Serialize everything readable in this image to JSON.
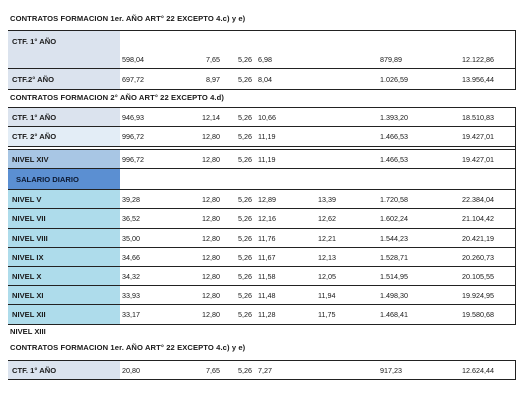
{
  "sections": [
    {
      "title": "CONTRATOS  FORMACION 1er. AÑO ART° 22 EXCEPTO 4.c) y e)"
    },
    {
      "title": "CONTRATOS  FORMACION 2° AÑO ART° 22 EXCEPTO 4.d)"
    },
    {
      "title": "CONTRATOS  FORMACION 1er. AÑO ART° 22 EXCEPTO 4.c) y  e)"
    }
  ],
  "block1": {
    "rows": [
      {
        "label": "CTF. 1° AÑO",
        "c1": "",
        "c2": "",
        "c3": "",
        "c4": "",
        "c5": "",
        "c6": "",
        "c7": ""
      },
      {
        "label": "",
        "c1": "598,04",
        "c2": "7,65",
        "c3": "5,26",
        "c4": "6,98",
        "c5": "",
        "c6": "879,89",
        "c7": "12.122,86"
      },
      {
        "label": "CTF.2° AÑO",
        "c1": "697,72",
        "c2": "8,97",
        "c3": "5,26",
        "c4": "8,04",
        "c5": "",
        "c6": "1.026,59",
        "c7": "13.956,44"
      }
    ]
  },
  "block2": {
    "rows": [
      {
        "label": "CTF. 1° AÑO",
        "c1": "946,93",
        "c2": "12,14",
        "c3": "5,26",
        "c4": "10,66",
        "c5": "",
        "c6": "1.393,20",
        "c7": "18.510,83"
      },
      {
        "label": "CTF. 2° AÑO",
        "c1": "996,72",
        "c2": "12,80",
        "c3": "5,26",
        "c4": "11,19",
        "c5": "",
        "c6": "1.466,53",
        "c7": "19.427,01"
      },
      {
        "label": "NIVEL XIV",
        "c1": "996,72",
        "c2": "12,80",
        "c3": "5,26",
        "c4": "11,19",
        "c5": "",
        "c6": "1.466,53",
        "c7": "19.427,01"
      },
      {
        "label": "SALARIO DIARIO",
        "c1": "",
        "c2": "",
        "c3": "",
        "c4": "",
        "c5": "",
        "c6": "",
        "c7": ""
      },
      {
        "label": "NIVEL  V",
        "c1": "39,28",
        "c2": "12,80",
        "c3": "5,26",
        "c4": "12,89",
        "c5": "13,39",
        "c6": "1.720,58",
        "c7": "22.384,04"
      },
      {
        "label": "NIVEL  VII",
        "c1": "36,52",
        "c2": "12,80",
        "c3": "5,26",
        "c4": "12,16",
        "c5": "12,62",
        "c6": "1.602,24",
        "c7": "21.104,42"
      },
      {
        "label": "NIVEL  VIII",
        "c1": "35,00",
        "c2": "12,80",
        "c3": "5,26",
        "c4": "11,76",
        "c5": "12,21",
        "c6": "1.544,23",
        "c7": "20.421,19"
      },
      {
        "label": "NIVEL  IX",
        "c1": "34,66",
        "c2": "12,80",
        "c3": "5,26",
        "c4": "11,67",
        "c5": "12,13",
        "c6": "1.528,71",
        "c7": "20.260,73"
      },
      {
        "label": "NIVEL  X",
        "c1": "34,32",
        "c2": "12,80",
        "c3": "5,26",
        "c4": "11,58",
        "c5": "12,05",
        "c6": "1.514,95",
        "c7": "20.105,55"
      },
      {
        "label": "NIVEL  XI",
        "c1": "33,93",
        "c2": "12,80",
        "c3": "5,26",
        "c4": "11,48",
        "c5": "11,94",
        "c6": "1.498,30",
        "c7": "19.924,95"
      },
      {
        "label": "NIVEL  XII",
        "c1": "33,17",
        "c2": "12,80",
        "c3": "5,26",
        "c4": "11,28",
        "c5": "11,75",
        "c6": "1.468,41",
        "c7": "19.580,68"
      }
    ],
    "trailing_label": "NIVEL XIII"
  },
  "block3": {
    "rows": [
      {
        "label": "CTF. 1° AÑO",
        "c1": "20,80",
        "c2": "7,65",
        "c3": "5,26",
        "c4": "7,27",
        "c5": "",
        "c6": "917,23",
        "c7": "12.624,44"
      }
    ]
  }
}
